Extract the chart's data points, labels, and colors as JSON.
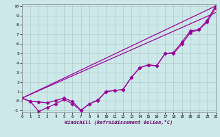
{
  "line_wavy1": {
    "x": [
      0,
      1,
      2,
      3,
      4,
      5,
      6,
      7,
      8,
      9,
      10,
      11,
      12,
      13,
      14,
      15,
      16,
      17,
      18,
      19,
      20,
      21,
      22,
      23
    ],
    "y": [
      0.3,
      -0.05,
      -0.1,
      -0.2,
      0.05,
      0.3,
      -0.05,
      -1.0,
      -0.3,
      0.05,
      1.0,
      1.1,
      1.2,
      2.5,
      3.5,
      3.8,
      3.7,
      5.0,
      5.1,
      6.2,
      7.4,
      7.5,
      8.5,
      10.0
    ]
  },
  "line_wavy2": {
    "x": [
      0,
      1,
      2,
      3,
      4,
      5,
      6,
      7,
      8,
      9,
      10,
      11,
      12,
      13,
      14,
      15,
      16,
      17,
      18,
      19,
      20,
      21,
      22,
      23
    ],
    "y": [
      0.3,
      -0.05,
      -1.1,
      -0.7,
      -0.3,
      0.15,
      -0.3,
      -1.0,
      -0.3,
      0.1,
      1.0,
      1.1,
      1.2,
      2.5,
      3.5,
      3.8,
      3.7,
      5.0,
      5.0,
      6.0,
      7.2,
      7.5,
      8.3,
      9.8
    ]
  },
  "line_straight1": {
    "x": [
      0,
      23
    ],
    "y": [
      0.3,
      10.0
    ]
  },
  "line_straight2": {
    "x": [
      0,
      23
    ],
    "y": [
      0.3,
      9.3
    ]
  },
  "xlim": [
    0,
    23
  ],
  "ylim": [
    -1.2,
    10.2
  ],
  "xticks": [
    0,
    1,
    2,
    3,
    4,
    5,
    6,
    7,
    8,
    9,
    10,
    11,
    12,
    13,
    14,
    15,
    16,
    17,
    18,
    19,
    20,
    21,
    22,
    23
  ],
  "yticks": [
    -1,
    0,
    1,
    2,
    3,
    4,
    5,
    6,
    7,
    8,
    9,
    10
  ],
  "xlabel": "Windchill (Refroidissement éolien,°C)",
  "line_color": "#990099",
  "bg_color": "#cce8e8",
  "grid_color": "#b0c8c8",
  "marker": "D",
  "markersize": 2.5,
  "linewidth": 0.9
}
